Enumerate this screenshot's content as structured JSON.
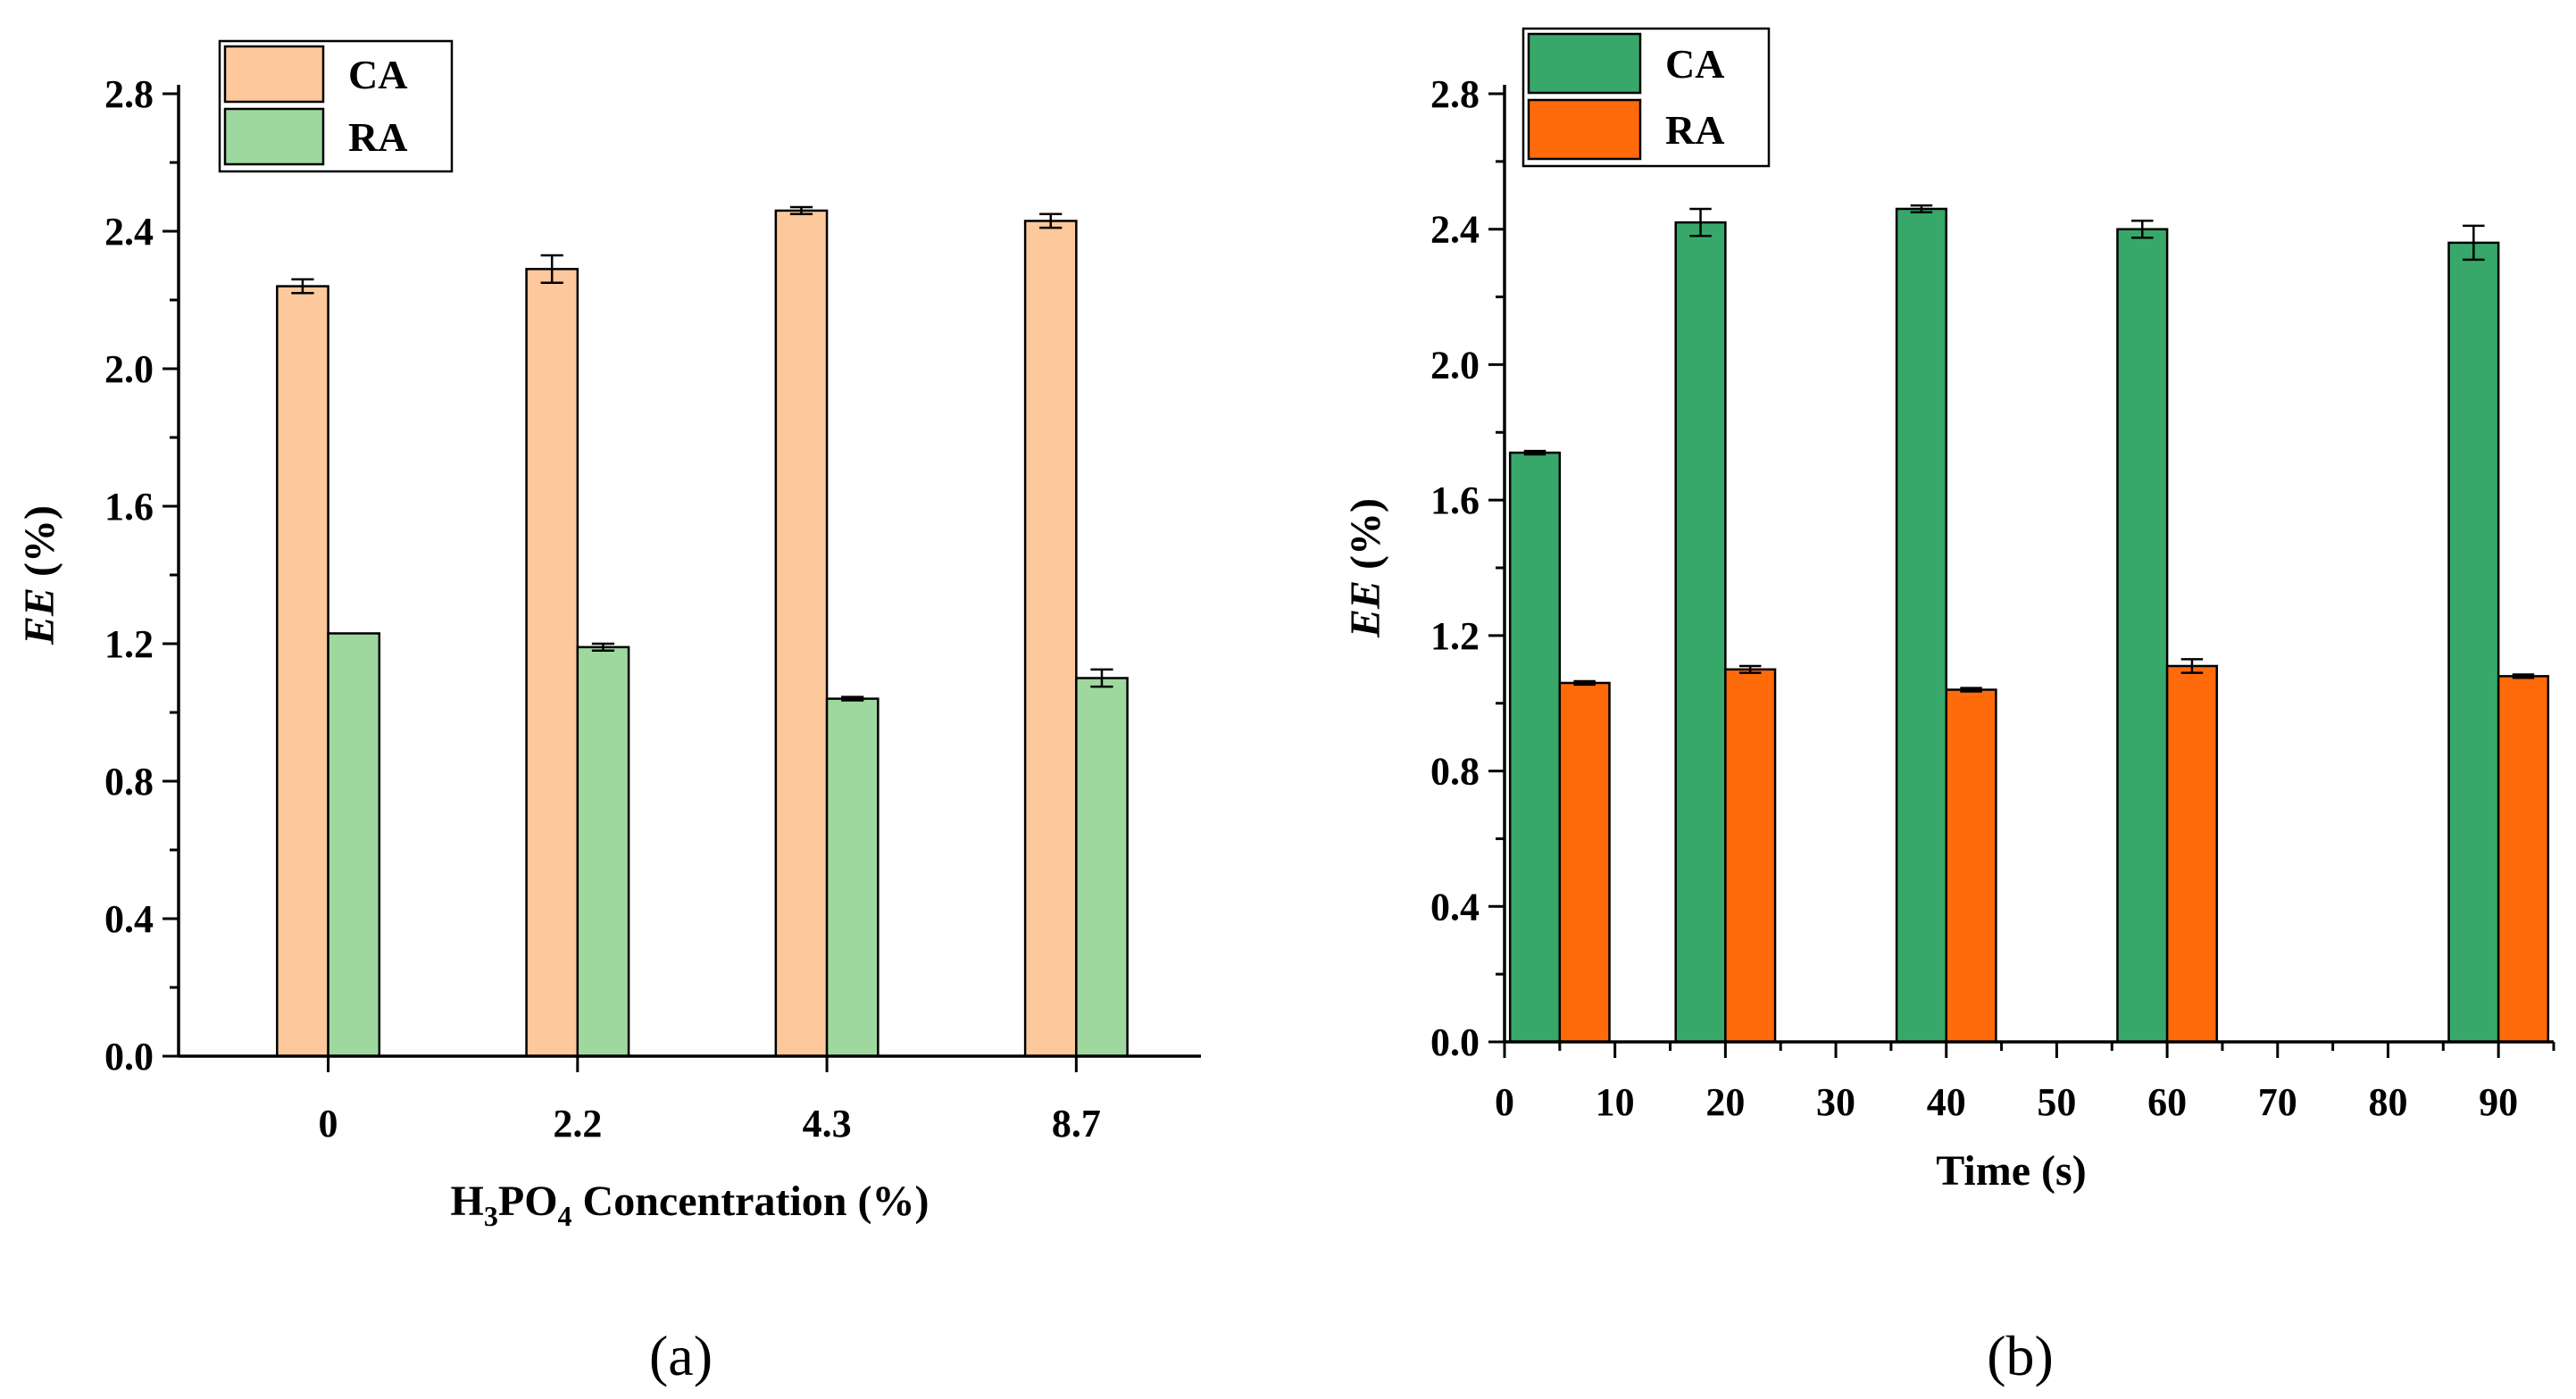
{
  "chart_data": [
    {
      "panel": "a",
      "panel_label": "(a)",
      "type": "bar",
      "ylabel_italic": "EE",
      "ylabel_rest": " (%)",
      "xlabel_parts": [
        "H",
        "3",
        "PO",
        "4",
        " Concentration (%)"
      ],
      "categories": [
        "0",
        "2.2",
        "4.3",
        "8.7"
      ],
      "ylim": [
        0,
        2.8
      ],
      "yticks": [
        "0.0",
        "0.4",
        "0.8",
        "1.2",
        "1.6",
        "2.0",
        "2.4",
        "2.8"
      ],
      "legend_position": "top-left",
      "series": [
        {
          "name": "CA",
          "color": "#FDC89B",
          "values": [
            2.24,
            2.29,
            2.46,
            2.43
          ],
          "errors": [
            0.02,
            0.04,
            0.01,
            0.02
          ]
        },
        {
          "name": "RA",
          "color": "#9FD89E",
          "values": [
            1.23,
            1.19,
            1.04,
            1.1
          ],
          "errors": [
            0.0,
            0.01,
            0.005,
            0.025
          ]
        }
      ]
    },
    {
      "panel": "b",
      "panel_label": "(b)",
      "type": "bar",
      "ylabel_italic": "EE",
      "ylabel_rest": " (%)",
      "xlabel": "Time (s)",
      "xlim": [
        0,
        95
      ],
      "xticks": [
        "0",
        "10",
        "20",
        "30",
        "40",
        "50",
        "60",
        "70",
        "80",
        "90"
      ],
      "x": [
        5,
        20,
        40,
        60,
        90
      ],
      "ylim": [
        0,
        2.8
      ],
      "yticks": [
        "0.0",
        "0.4",
        "0.8",
        "1.2",
        "1.6",
        "2.0",
        "2.4",
        "2.8"
      ],
      "legend_position": "top-left",
      "series": [
        {
          "name": "CA",
          "color": "#37A86A",
          "values": [
            1.74,
            2.42,
            2.46,
            2.4,
            2.36
          ],
          "errors": [
            0.005,
            0.04,
            0.01,
            0.025,
            0.05
          ]
        },
        {
          "name": "RA",
          "color": "#FF6A0A",
          "values": [
            1.06,
            1.1,
            1.04,
            1.11,
            1.08
          ],
          "errors": [
            0.005,
            0.01,
            0.005,
            0.02,
            0.005
          ]
        }
      ]
    }
  ]
}
